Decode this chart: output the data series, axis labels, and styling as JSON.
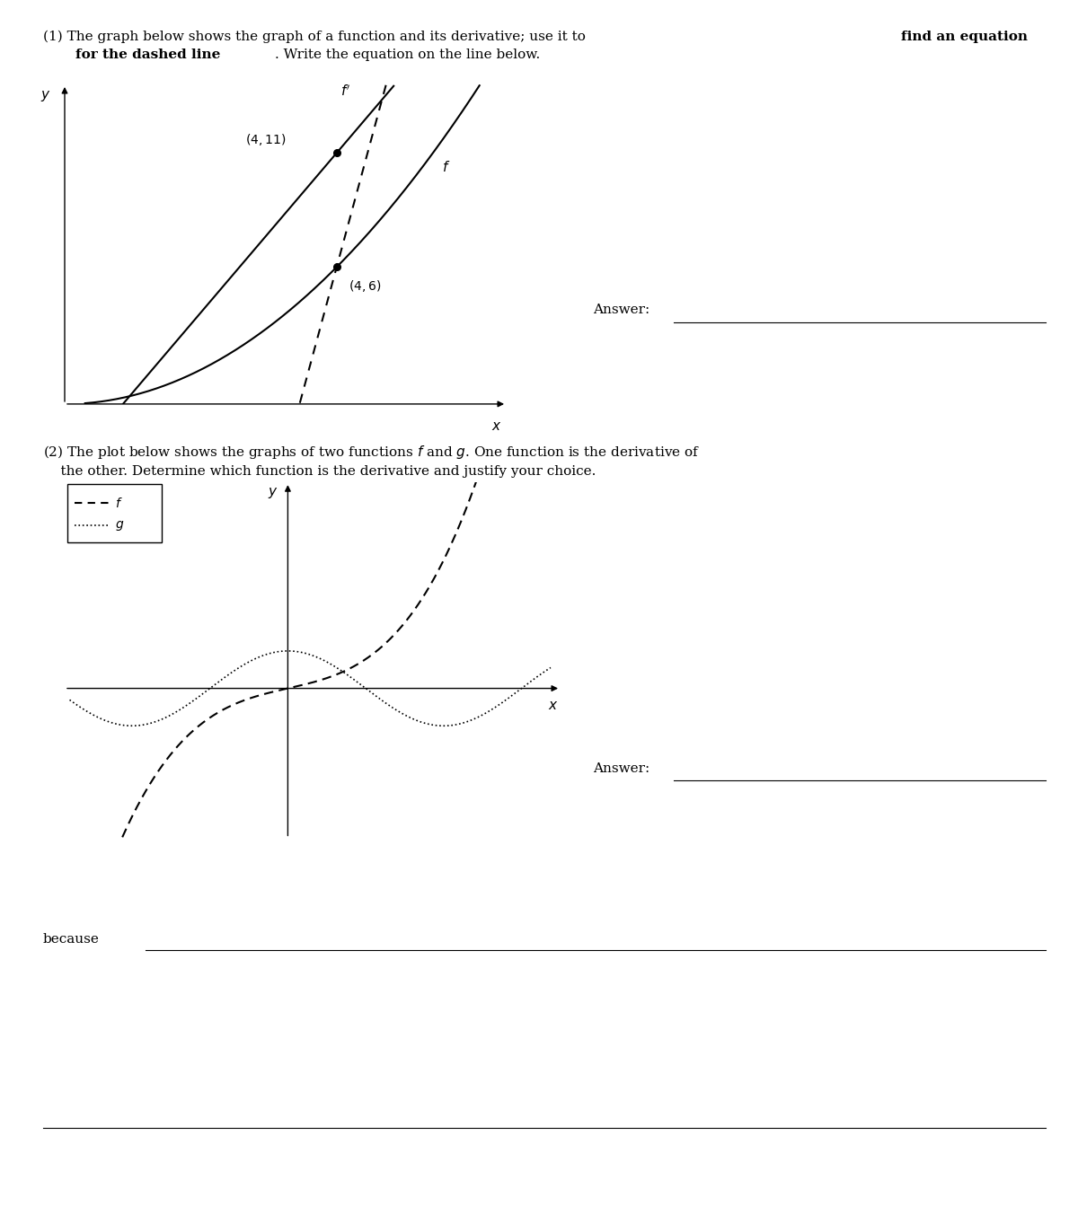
{
  "fig_width": 12.0,
  "fig_height": 13.43,
  "bg_color": "#ffffff",
  "text_color": "#000000",
  "plot1_xlim": [
    0,
    6.5
  ],
  "plot1_ylim": [
    0,
    14
  ],
  "plot1_point1": [
    4,
    11
  ],
  "plot1_point2": [
    4,
    6
  ],
  "plot2_xlim": [
    -4.5,
    5.5
  ],
  "plot2_ylim": [
    -4.0,
    5.5
  ],
  "answer_text": "Answer:",
  "because_text": "because"
}
